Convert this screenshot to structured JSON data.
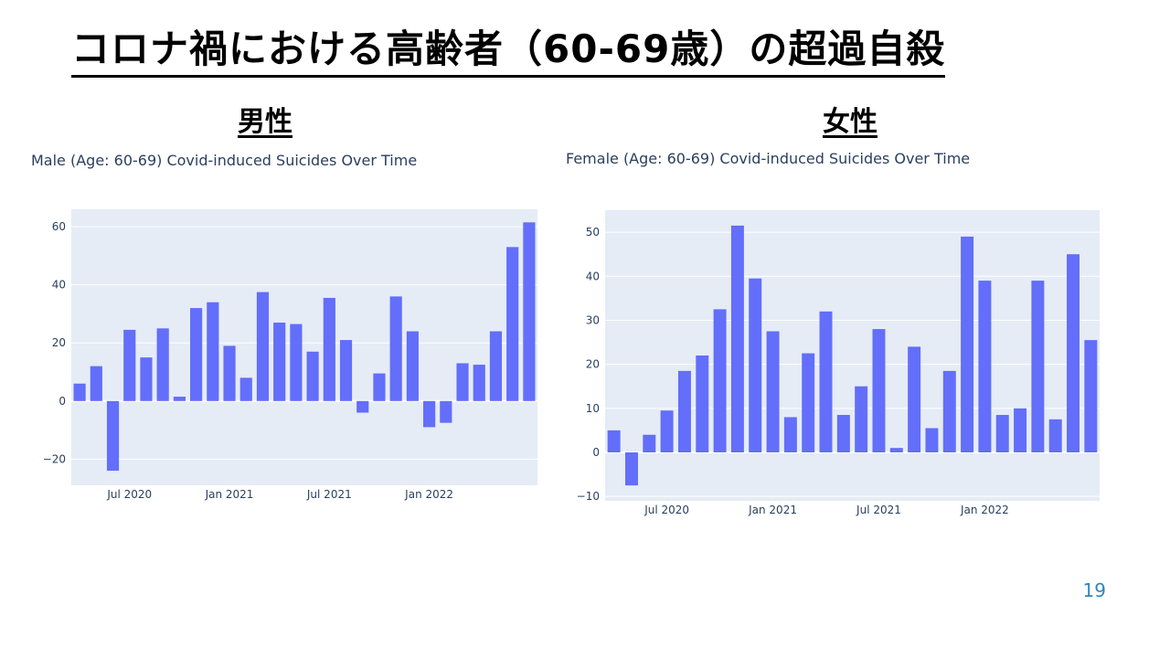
{
  "slide": {
    "title": "コロナ禍における高齢者（60-69歳）の超過自殺",
    "page_number": "19"
  },
  "panels": {
    "male": {
      "heading": "男性"
    },
    "female": {
      "heading": "女性"
    }
  },
  "colors": {
    "bar": "#636efa",
    "plot_bg": "#e5ecf6",
    "grid": "#ffffff",
    "tick_text": "#2a3f5f"
  },
  "chart_data": [
    {
      "type": "bar",
      "title": "Male (Age: 60-69) Covid-induced Suicides Over Time",
      "x": [
        "2020-03",
        "2020-04",
        "2020-05",
        "2020-06",
        "2020-07",
        "2020-08",
        "2020-09",
        "2020-10",
        "2020-11",
        "2020-12",
        "2021-01",
        "2021-02",
        "2021-03",
        "2021-04",
        "2021-05",
        "2021-06",
        "2021-07",
        "2021-08",
        "2021-09",
        "2021-10",
        "2021-11",
        "2021-12",
        "2022-01",
        "2022-02",
        "2022-03",
        "2022-04",
        "2022-05",
        "2022-06"
      ],
      "values": [
        6,
        12,
        -24,
        24.5,
        15,
        25,
        1.5,
        32,
        34,
        19,
        8,
        37.5,
        27,
        26.5,
        17,
        35.5,
        21,
        -4,
        9.5,
        36,
        24,
        -9,
        -7.5,
        13,
        12.5,
        24,
        53,
        61.5
      ],
      "ylim": [
        -29,
        66
      ],
      "yticks": [
        -20,
        0,
        20,
        40,
        60
      ],
      "ytick_labels": [
        "−20",
        "0",
        "20",
        "40",
        "60"
      ],
      "xticks": [
        "Jul 2020",
        "Jan 2021",
        "Jul 2021",
        "Jan 2022"
      ],
      "grid": true
    },
    {
      "type": "bar",
      "title": "Female (Age: 60-69) Covid-induced Suicides Over Time",
      "x": [
        "2020-03",
        "2020-04",
        "2020-05",
        "2020-06",
        "2020-07",
        "2020-08",
        "2020-09",
        "2020-10",
        "2020-11",
        "2020-12",
        "2021-01",
        "2021-02",
        "2021-03",
        "2021-04",
        "2021-05",
        "2021-06",
        "2021-07",
        "2021-08",
        "2021-09",
        "2021-10",
        "2021-11",
        "2021-12",
        "2022-01",
        "2022-02",
        "2022-03",
        "2022-04",
        "2022-05",
        "2022-06"
      ],
      "values": [
        5,
        -7.5,
        4,
        9.5,
        18.5,
        22,
        32.5,
        51.5,
        39.5,
        27.5,
        8,
        22.5,
        32,
        8.5,
        15,
        28,
        1,
        24,
        5.5,
        18.5,
        49,
        39,
        8.5,
        10,
        39,
        7.5,
        45,
        25.5
      ],
      "ylim": [
        -11,
        55
      ],
      "yticks": [
        -10,
        0,
        10,
        20,
        30,
        40,
        50
      ],
      "ytick_labels": [
        "−10",
        "0",
        "10",
        "20",
        "30",
        "40",
        "50"
      ],
      "xticks": [
        "Jul 2020",
        "Jan 2021",
        "Jul 2021",
        "Jan 2022"
      ],
      "grid": true
    }
  ]
}
